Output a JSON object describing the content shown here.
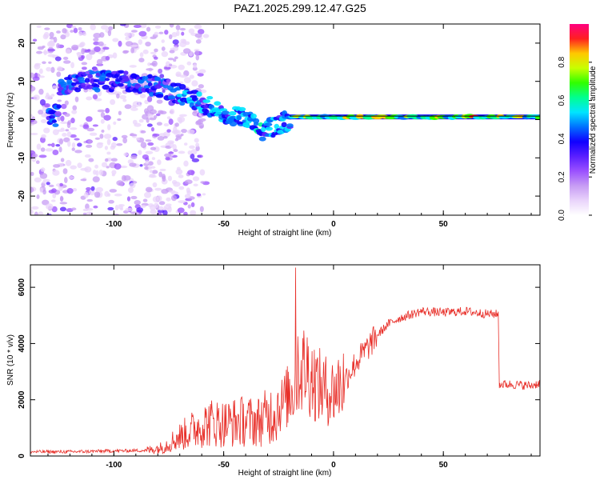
{
  "title": "PAZ1.2025.299.12.47.G25",
  "chart_data": [
    {
      "type": "heatmap",
      "name": "spectrogram",
      "xlabel": "Height of straight line (km)",
      "ylabel": "Frequency (Hz)",
      "xlim": [
        -138,
        94
      ],
      "ylim": [
        -25,
        25
      ],
      "xticks": [
        -100,
        -50,
        0,
        50
      ],
      "yticks": [
        -20,
        -10,
        0,
        10,
        20
      ],
      "dominant_ridge": [
        {
          "x": -125,
          "y": 9
        },
        {
          "x": -110,
          "y": 10
        },
        {
          "x": -90,
          "y": 10
        },
        {
          "x": -75,
          "y": 8
        },
        {
          "x": -60,
          "y": 4
        },
        {
          "x": -50,
          "y": 2
        },
        {
          "x": -40,
          "y": 0
        },
        {
          "x": -32,
          "y": -3
        },
        {
          "x": -20,
          "y": 0
        },
        {
          "x": 0,
          "y": 1
        },
        {
          "x": 50,
          "y": 0.7
        },
        {
          "x": 94,
          "y": 1
        }
      ],
      "colorbar": {
        "label": "Normalized spectral amplitude",
        "ticks": [
          "0.0",
          "0.2",
          "0.4",
          "0.6",
          "0.8"
        ],
        "range": [
          0,
          1
        ],
        "colors": [
          "#ffffff",
          "#e9d4fb",
          "#c79cf4",
          "#9b51ff",
          "#5a1fff",
          "#1000ff",
          "#0070ff",
          "#00e5ff",
          "#00ff90",
          "#30ff00",
          "#c8ff00",
          "#ffc800",
          "#ff2020",
          "#ff0080"
        ]
      }
    },
    {
      "type": "line",
      "name": "snr",
      "xlabel": "Height of straight line (km)",
      "ylabel": "SNR (10 * v/v)",
      "xlim": [
        -138,
        94
      ],
      "ylim": [
        0,
        6800
      ],
      "xticks": [
        -100,
        -50,
        0,
        50
      ],
      "yticks": [
        0,
        2000,
        4000,
        6000
      ],
      "color": "#e8302a",
      "series": [
        {
          "name": "SNR",
          "x": [
            -138,
            -120,
            -100,
            -85,
            -78,
            -72,
            -65,
            -60,
            -55,
            -50,
            -45,
            -40,
            -35,
            -30,
            -25,
            -20,
            -17,
            -15,
            -12,
            -8,
            -5,
            -2,
            0,
            5,
            10,
            15,
            20,
            25,
            30,
            40,
            50,
            60,
            70,
            75,
            75.5,
            80,
            90,
            94
          ],
          "y": [
            150,
            150,
            180,
            200,
            300,
            600,
            900,
            1100,
            1200,
            1150,
            1200,
            1250,
            1200,
            1400,
            1700,
            2200,
            2600,
            3100,
            3100,
            2600,
            2400,
            2300,
            2300,
            2700,
            3300,
            3800,
            4300,
            4700,
            4900,
            5150,
            5100,
            5150,
            5050,
            5050,
            2550,
            2550,
            2500,
            2600
          ]
        }
      ]
    }
  ]
}
